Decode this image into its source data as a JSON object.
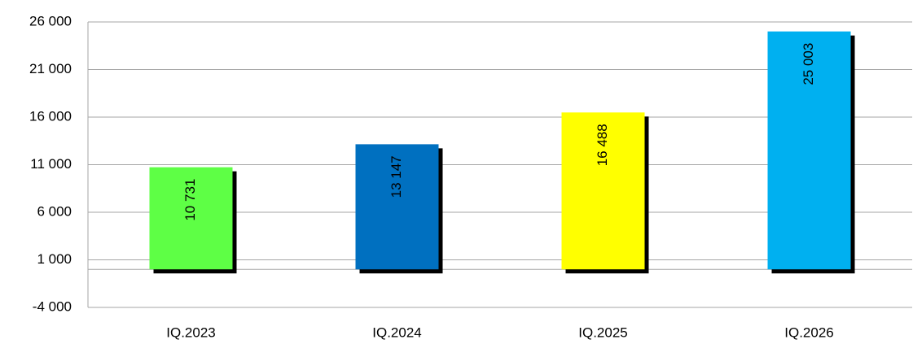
{
  "chart_data": {
    "type": "bar",
    "categories": [
      "IQ.2023",
      "IQ.2024",
      "IQ.2025",
      "IQ.2026"
    ],
    "series": [
      {
        "colors": [
          "#5eff45",
          "#0070c0",
          "#ffff00",
          "#00b0f0"
        ],
        "values": [
          10731,
          13147,
          16488,
          25003
        ],
        "value_labels": [
          "10 731",
          "13 147",
          "16 488",
          "25 003"
        ]
      }
    ],
    "ylim": [
      -4000,
      26000
    ],
    "yticks": [
      {
        "value": -4000,
        "label": "-4 000"
      },
      {
        "value": 1000,
        "label": "1 000"
      },
      {
        "value": 6000,
        "label": "6 000"
      },
      {
        "value": 11000,
        "label": "11 000"
      },
      {
        "value": 16000,
        "label": "16 000"
      },
      {
        "value": 21000,
        "label": "21 000"
      },
      {
        "value": 26000,
        "label": "26 000"
      }
    ],
    "grid": true
  }
}
